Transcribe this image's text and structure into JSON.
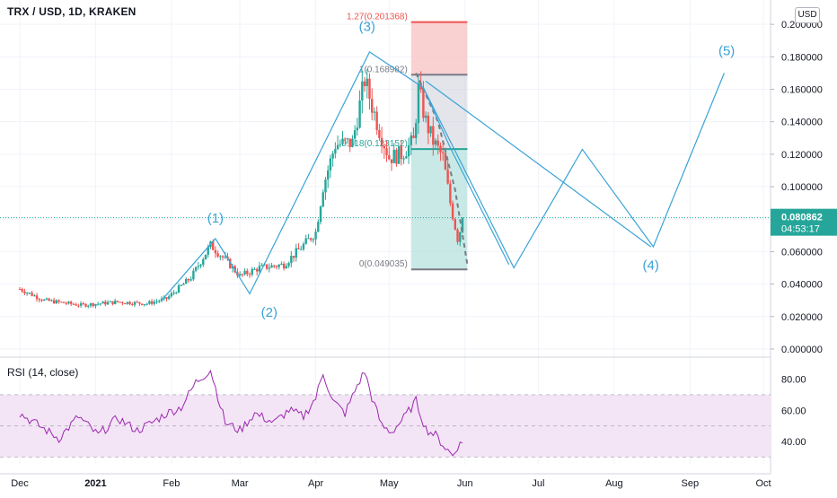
{
  "header": {
    "symbol": "TRX / USD, 1D, KRAKEN",
    "currency_button": "USD"
  },
  "rsi_label": "RSI (14, close)",
  "colors": {
    "up": "#26a69a",
    "down": "#ef5350",
    "wave": "#3aa3d6",
    "rsi": "#9c27b0",
    "rsi_band": "#f3e5f5",
    "last_price_bg": "#26a69a"
  },
  "chart_data": {
    "type": "candlestick",
    "price_axis": {
      "ylim": [
        -0.005,
        0.215
      ],
      "ticks": [
        "0.000000",
        "0.020000",
        "0.040000",
        "0.060000",
        "0.080000",
        "0.100000",
        "0.120000",
        "0.140000",
        "0.160000",
        "0.180000",
        "0.200000"
      ],
      "tick_values": [
        0,
        0.02,
        0.04,
        0.06,
        0.08,
        0.1,
        0.12,
        0.14,
        0.16,
        0.18,
        0.2
      ]
    },
    "time_axis": {
      "labels": [
        "Dec",
        "2021",
        "Feb",
        "Mar",
        "Apr",
        "May",
        "Jun",
        "Jul",
        "Aug",
        "Sep",
        "Oct"
      ],
      "label_days": [
        0,
        31,
        62,
        90,
        121,
        151,
        182,
        212,
        243,
        274,
        304
      ]
    },
    "last_price": {
      "label": "0.080862",
      "value": 0.080862,
      "countdown": "04:53:17"
    },
    "anchors": [
      {
        "day": 0,
        "price": 0.037
      },
      {
        "day": 10,
        "price": 0.03
      },
      {
        "day": 25,
        "price": 0.027
      },
      {
        "day": 40,
        "price": 0.029
      },
      {
        "day": 52,
        "price": 0.028
      },
      {
        "day": 60,
        "price": 0.031
      },
      {
        "day": 70,
        "price": 0.044
      },
      {
        "day": 78,
        "price": 0.064
      },
      {
        "day": 84,
        "price": 0.055
      },
      {
        "day": 90,
        "price": 0.045
      },
      {
        "day": 98,
        "price": 0.05
      },
      {
        "day": 108,
        "price": 0.052
      },
      {
        "day": 116,
        "price": 0.064
      },
      {
        "day": 121,
        "price": 0.072
      },
      {
        "day": 124,
        "price": 0.1
      },
      {
        "day": 129,
        "price": 0.126
      },
      {
        "day": 136,
        "price": 0.127
      },
      {
        "day": 141,
        "price": 0.166
      },
      {
        "day": 144,
        "price": 0.15
      },
      {
        "day": 147,
        "price": 0.135
      },
      {
        "day": 151,
        "price": 0.118
      },
      {
        "day": 156,
        "price": 0.12
      },
      {
        "day": 161,
        "price": 0.128
      },
      {
        "day": 163,
        "price": 0.16
      },
      {
        "day": 166,
        "price": 0.14
      },
      {
        "day": 169,
        "price": 0.128
      },
      {
        "day": 173,
        "price": 0.118
      },
      {
        "day": 176,
        "price": 0.09
      },
      {
        "day": 179,
        "price": 0.068
      },
      {
        "day": 181,
        "price": 0.078
      }
    ],
    "wave_path": [
      {
        "day": 58,
        "price": 0.03
      },
      {
        "day": 80,
        "price": 0.068
      },
      {
        "day": 94,
        "price": 0.034
      },
      {
        "day": 143,
        "price": 0.183
      },
      {
        "day": 165,
        "price": 0.161
      },
      {
        "day": 202,
        "price": 0.05
      },
      {
        "day": 230,
        "price": 0.123
      },
      {
        "day": 259,
        "price": 0.063
      },
      {
        "day": 288,
        "price": 0.17
      }
    ],
    "wave_path_b": [
      {
        "day": 165,
        "price": 0.161
      },
      {
        "day": 176,
        "price": 0.124
      },
      {
        "day": 200,
        "price": 0.052
      }
    ],
    "wave_line_2": [
      {
        "day": 166,
        "price": 0.165
      },
      {
        "day": 258,
        "price": 0.063
      }
    ],
    "wave_labels": [
      {
        "text": "(1)",
        "day": 80,
        "price": 0.078
      },
      {
        "text": "(2)",
        "day": 102,
        "price": 0.02
      },
      {
        "text": "(3)",
        "day": 142,
        "price": 0.196
      },
      {
        "text": "(4)",
        "day": 258,
        "price": 0.049
      },
      {
        "text": "(5)",
        "day": 289,
        "price": 0.181
      }
    ],
    "fib_box": {
      "day_start": 160,
      "day_end": 183,
      "levels": [
        {
          "label": "1.27(0.201368)",
          "value": 0.201368
        },
        {
          "label": "1(0.168982)",
          "value": 0.168982
        },
        {
          "label": "0.618(0.123152)",
          "value": 0.123152
        },
        {
          "label": "0(0.049035)",
          "value": 0.049035
        }
      ]
    },
    "rsi": {
      "label": "RSI (14, close)",
      "ylim": [
        25,
        93
      ],
      "ticks": [
        "40.00",
        "60.00",
        "80.00"
      ],
      "tick_values": [
        40,
        60,
        80
      ],
      "band": [
        30,
        70
      ],
      "anchors": [
        {
          "day": 0,
          "v": 58
        },
        {
          "day": 8,
          "v": 50
        },
        {
          "day": 16,
          "v": 42
        },
        {
          "day": 24,
          "v": 56
        },
        {
          "day": 32,
          "v": 44
        },
        {
          "day": 40,
          "v": 55
        },
        {
          "day": 48,
          "v": 47
        },
        {
          "day": 54,
          "v": 52
        },
        {
          "day": 60,
          "v": 58
        },
        {
          "day": 66,
          "v": 62
        },
        {
          "day": 72,
          "v": 78
        },
        {
          "day": 78,
          "v": 86
        },
        {
          "day": 84,
          "v": 52
        },
        {
          "day": 90,
          "v": 47
        },
        {
          "day": 96,
          "v": 58
        },
        {
          "day": 104,
          "v": 52
        },
        {
          "day": 110,
          "v": 60
        },
        {
          "day": 116,
          "v": 56
        },
        {
          "day": 121,
          "v": 68
        },
        {
          "day": 124,
          "v": 84
        },
        {
          "day": 128,
          "v": 66
        },
        {
          "day": 133,
          "v": 58
        },
        {
          "day": 138,
          "v": 76
        },
        {
          "day": 141,
          "v": 85
        },
        {
          "day": 144,
          "v": 68
        },
        {
          "day": 148,
          "v": 50
        },
        {
          "day": 152,
          "v": 46
        },
        {
          "day": 157,
          "v": 55
        },
        {
          "day": 162,
          "v": 66
        },
        {
          "day": 166,
          "v": 48
        },
        {
          "day": 170,
          "v": 44
        },
        {
          "day": 174,
          "v": 36
        },
        {
          "day": 177,
          "v": 31
        },
        {
          "day": 179,
          "v": 37
        },
        {
          "day": 181,
          "v": 39
        }
      ]
    }
  }
}
